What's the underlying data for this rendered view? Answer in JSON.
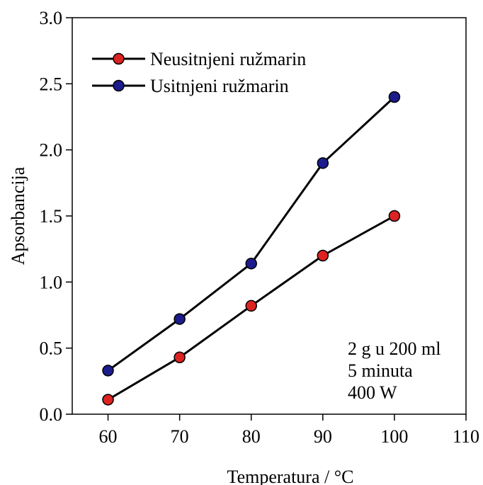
{
  "chart_data": {
    "type": "line",
    "xlabel": "Temperatura / °C",
    "ylabel": "Apsorbancija",
    "xlim": [
      55,
      110
    ],
    "ylim": [
      0,
      3.0
    ],
    "xticks": [
      60,
      70,
      80,
      90,
      100,
      110
    ],
    "xtick_labels": [
      "60",
      "70",
      "80",
      "90",
      "100",
      "110"
    ],
    "yticks": [
      0.0,
      0.5,
      1.0,
      1.5,
      2.0,
      2.5,
      3.0
    ],
    "ytick_labels": [
      "0.0",
      "0.5",
      "1.0",
      "1.5",
      "2.0",
      "2.5",
      "3.0"
    ],
    "grid": false,
    "legend_position": "top-left",
    "series": [
      {
        "name": "Neusitnjeni ružmarin",
        "color": "#dd2222",
        "x": [
          60,
          70,
          80,
          90,
          100
        ],
        "y": [
          0.11,
          0.43,
          0.82,
          1.2,
          1.5
        ]
      },
      {
        "name": "Usitnjeni ružmarin",
        "color": "#1c1c8c",
        "x": [
          60,
          70,
          80,
          90,
          100
        ],
        "y": [
          0.33,
          0.72,
          1.14,
          1.9,
          2.4
        ]
      }
    ],
    "annotations": [
      "2 g u 200 ml",
      "5 minuta",
      "400 W"
    ]
  }
}
